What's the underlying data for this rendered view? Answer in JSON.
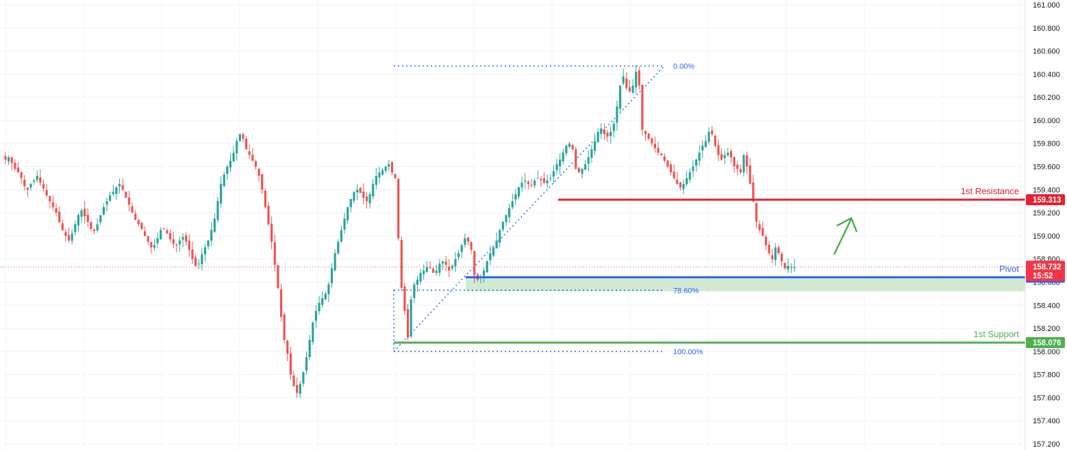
{
  "chart_data": {
    "type": "candlestick",
    "ylim": [
      157.2,
      161.0
    ],
    "y_ticks": [
      "161.000",
      "160.800",
      "160.600",
      "160.400",
      "160.200",
      "160.000",
      "159.800",
      "159.600",
      "159.400",
      "159.200",
      "159.000",
      "158.800",
      "158.600",
      "158.400",
      "158.200",
      "158.000",
      "157.800",
      "157.600",
      "157.400",
      "157.200"
    ],
    "current_price": {
      "value": "158.732",
      "countdown": "15:52",
      "color": "#f23645"
    },
    "levels": [
      {
        "name": "1st Resistance",
        "value": 159.313,
        "badge": "159.313",
        "color": "#e5202e"
      },
      {
        "name": "Pivot",
        "value": 158.642,
        "badge": "158.642",
        "color": "#2962ff"
      },
      {
        "name": "1st Support",
        "value": 158.076,
        "badge": "158.076",
        "color": "#4caf50"
      }
    ],
    "zone": {
      "from": 158.52,
      "to": 158.642,
      "color": "#c8e6c9"
    },
    "fibonacci": [
      {
        "label": "0.00%",
        "value": 160.47
      },
      {
        "label": "78.60%",
        "value": 158.53
      },
      {
        "label": "100.00%",
        "value": 158.0
      }
    ],
    "fib_swing": {
      "low": 158.0,
      "high": 160.47
    },
    "projection": "up",
    "up_color": "#26a69a",
    "down_color": "#ef5350",
    "closes": [
      159.66,
      159.68,
      159.63,
      159.58,
      159.55,
      159.5,
      159.43,
      159.4,
      159.45,
      159.48,
      159.52,
      159.46,
      159.41,
      159.35,
      159.3,
      159.25,
      159.2,
      159.12,
      159.05,
      159.0,
      158.96,
      159.02,
      159.1,
      159.18,
      159.22,
      159.17,
      159.12,
      159.06,
      159.04,
      159.1,
      159.18,
      159.25,
      159.3,
      159.35,
      159.38,
      159.42,
      159.45,
      159.4,
      159.33,
      159.27,
      159.2,
      159.14,
      159.1,
      159.06,
      159.0,
      158.95,
      158.9,
      158.92,
      158.98,
      159.05,
      159.06,
      159.02,
      158.97,
      158.93,
      158.92,
      158.96,
      158.99,
      158.95,
      158.88,
      158.8,
      158.74,
      158.76,
      158.84,
      158.9,
      158.96,
      159.05,
      159.15,
      159.3,
      159.45,
      159.53,
      159.6,
      159.65,
      159.72,
      159.82,
      159.88,
      159.84,
      159.75,
      159.7,
      159.65,
      159.6,
      159.52,
      159.4,
      159.25,
      159.1,
      158.95,
      158.75,
      158.55,
      158.3,
      158.1,
      157.98,
      157.8,
      157.7,
      157.64,
      157.72,
      157.82,
      157.95,
      158.1,
      158.25,
      158.35,
      158.42,
      158.46,
      158.5,
      158.58,
      158.72,
      158.85,
      158.95,
      159.05,
      159.15,
      159.25,
      159.32,
      159.38,
      159.4,
      159.37,
      159.33,
      159.3,
      159.36,
      159.45,
      159.52,
      159.55,
      159.57,
      159.6,
      159.62,
      159.55,
      159.5,
      158.98,
      158.55,
      158.35,
      158.12,
      158.45,
      158.58,
      158.62,
      158.68,
      158.7,
      158.73,
      158.72,
      158.68,
      158.7,
      158.76,
      158.78,
      158.75,
      158.7,
      158.74,
      158.8,
      158.85,
      158.92,
      158.98,
      158.95,
      158.88,
      158.66,
      158.62,
      158.65,
      158.7,
      158.78,
      158.85,
      158.9,
      158.96,
      159.05,
      159.12,
      159.18,
      159.24,
      159.3,
      159.36,
      159.42,
      159.46,
      159.48,
      159.45,
      159.44,
      159.48,
      159.5,
      159.48,
      159.46,
      159.48,
      159.5,
      159.56,
      159.62,
      159.66,
      159.72,
      159.78,
      159.8,
      159.75,
      159.58,
      159.55,
      159.58,
      159.62,
      159.68,
      159.75,
      159.82,
      159.9,
      159.93,
      159.88,
      159.86,
      159.9,
      159.97,
      160.12,
      160.3,
      160.38,
      160.28,
      160.25,
      160.3,
      160.42,
      160.3,
      159.92,
      159.88,
      159.84,
      159.8,
      159.76,
      159.72,
      159.7,
      159.65,
      159.6,
      159.55,
      159.5,
      159.45,
      159.42,
      159.45,
      159.5,
      159.55,
      159.6,
      159.66,
      159.72,
      159.78,
      159.82,
      159.9,
      159.88,
      159.78,
      159.7,
      159.66,
      159.7,
      159.72,
      159.68,
      159.6,
      159.58,
      159.55,
      159.7,
      159.6,
      159.45,
      159.3,
      159.12,
      159.05,
      159.0,
      158.92,
      158.85,
      158.8,
      158.9,
      158.85,
      158.78,
      158.72,
      158.74,
      158.73,
      158.73
    ]
  }
}
